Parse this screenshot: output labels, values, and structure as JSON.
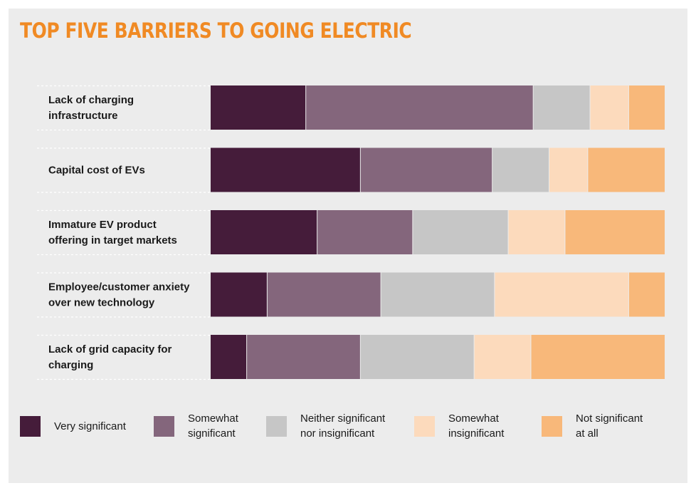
{
  "chart_data": {
    "type": "bar",
    "orientation": "horizontal",
    "stacked": true,
    "title": "TOP FIVE BARRIERS TO GOING ELECTRIC",
    "categories": [
      "Lack of charging infrastructure",
      "Capital cost of EVs",
      "Immature EV product offering in target markets",
      "Employee/customer anxiety over new technology",
      "Lack of grid capacity for charging"
    ],
    "series": [
      {
        "name": "Very significant",
        "color": "#451c3a",
        "values": [
          21,
          33,
          23.5,
          12.5,
          8
        ]
      },
      {
        "name": "Somewhat significant",
        "color": "#84667c",
        "values": [
          50,
          29,
          21,
          25,
          25
        ]
      },
      {
        "name": "Neither significant nor insignificant",
        "color": "#c6c6c6",
        "values": [
          12.5,
          12.5,
          21,
          25,
          25
        ]
      },
      {
        "name": "Somewhat insignificant",
        "color": "#fcdabc",
        "values": [
          8.5,
          8.5,
          12.5,
          29.5,
          12.5
        ]
      },
      {
        "name": "Not significant at all",
        "color": "#f8b87a",
        "values": [
          8,
          17,
          22,
          8,
          29.5
        ]
      }
    ],
    "xlim": [
      0,
      100
    ],
    "grid": false,
    "legend_position": "bottom"
  }
}
